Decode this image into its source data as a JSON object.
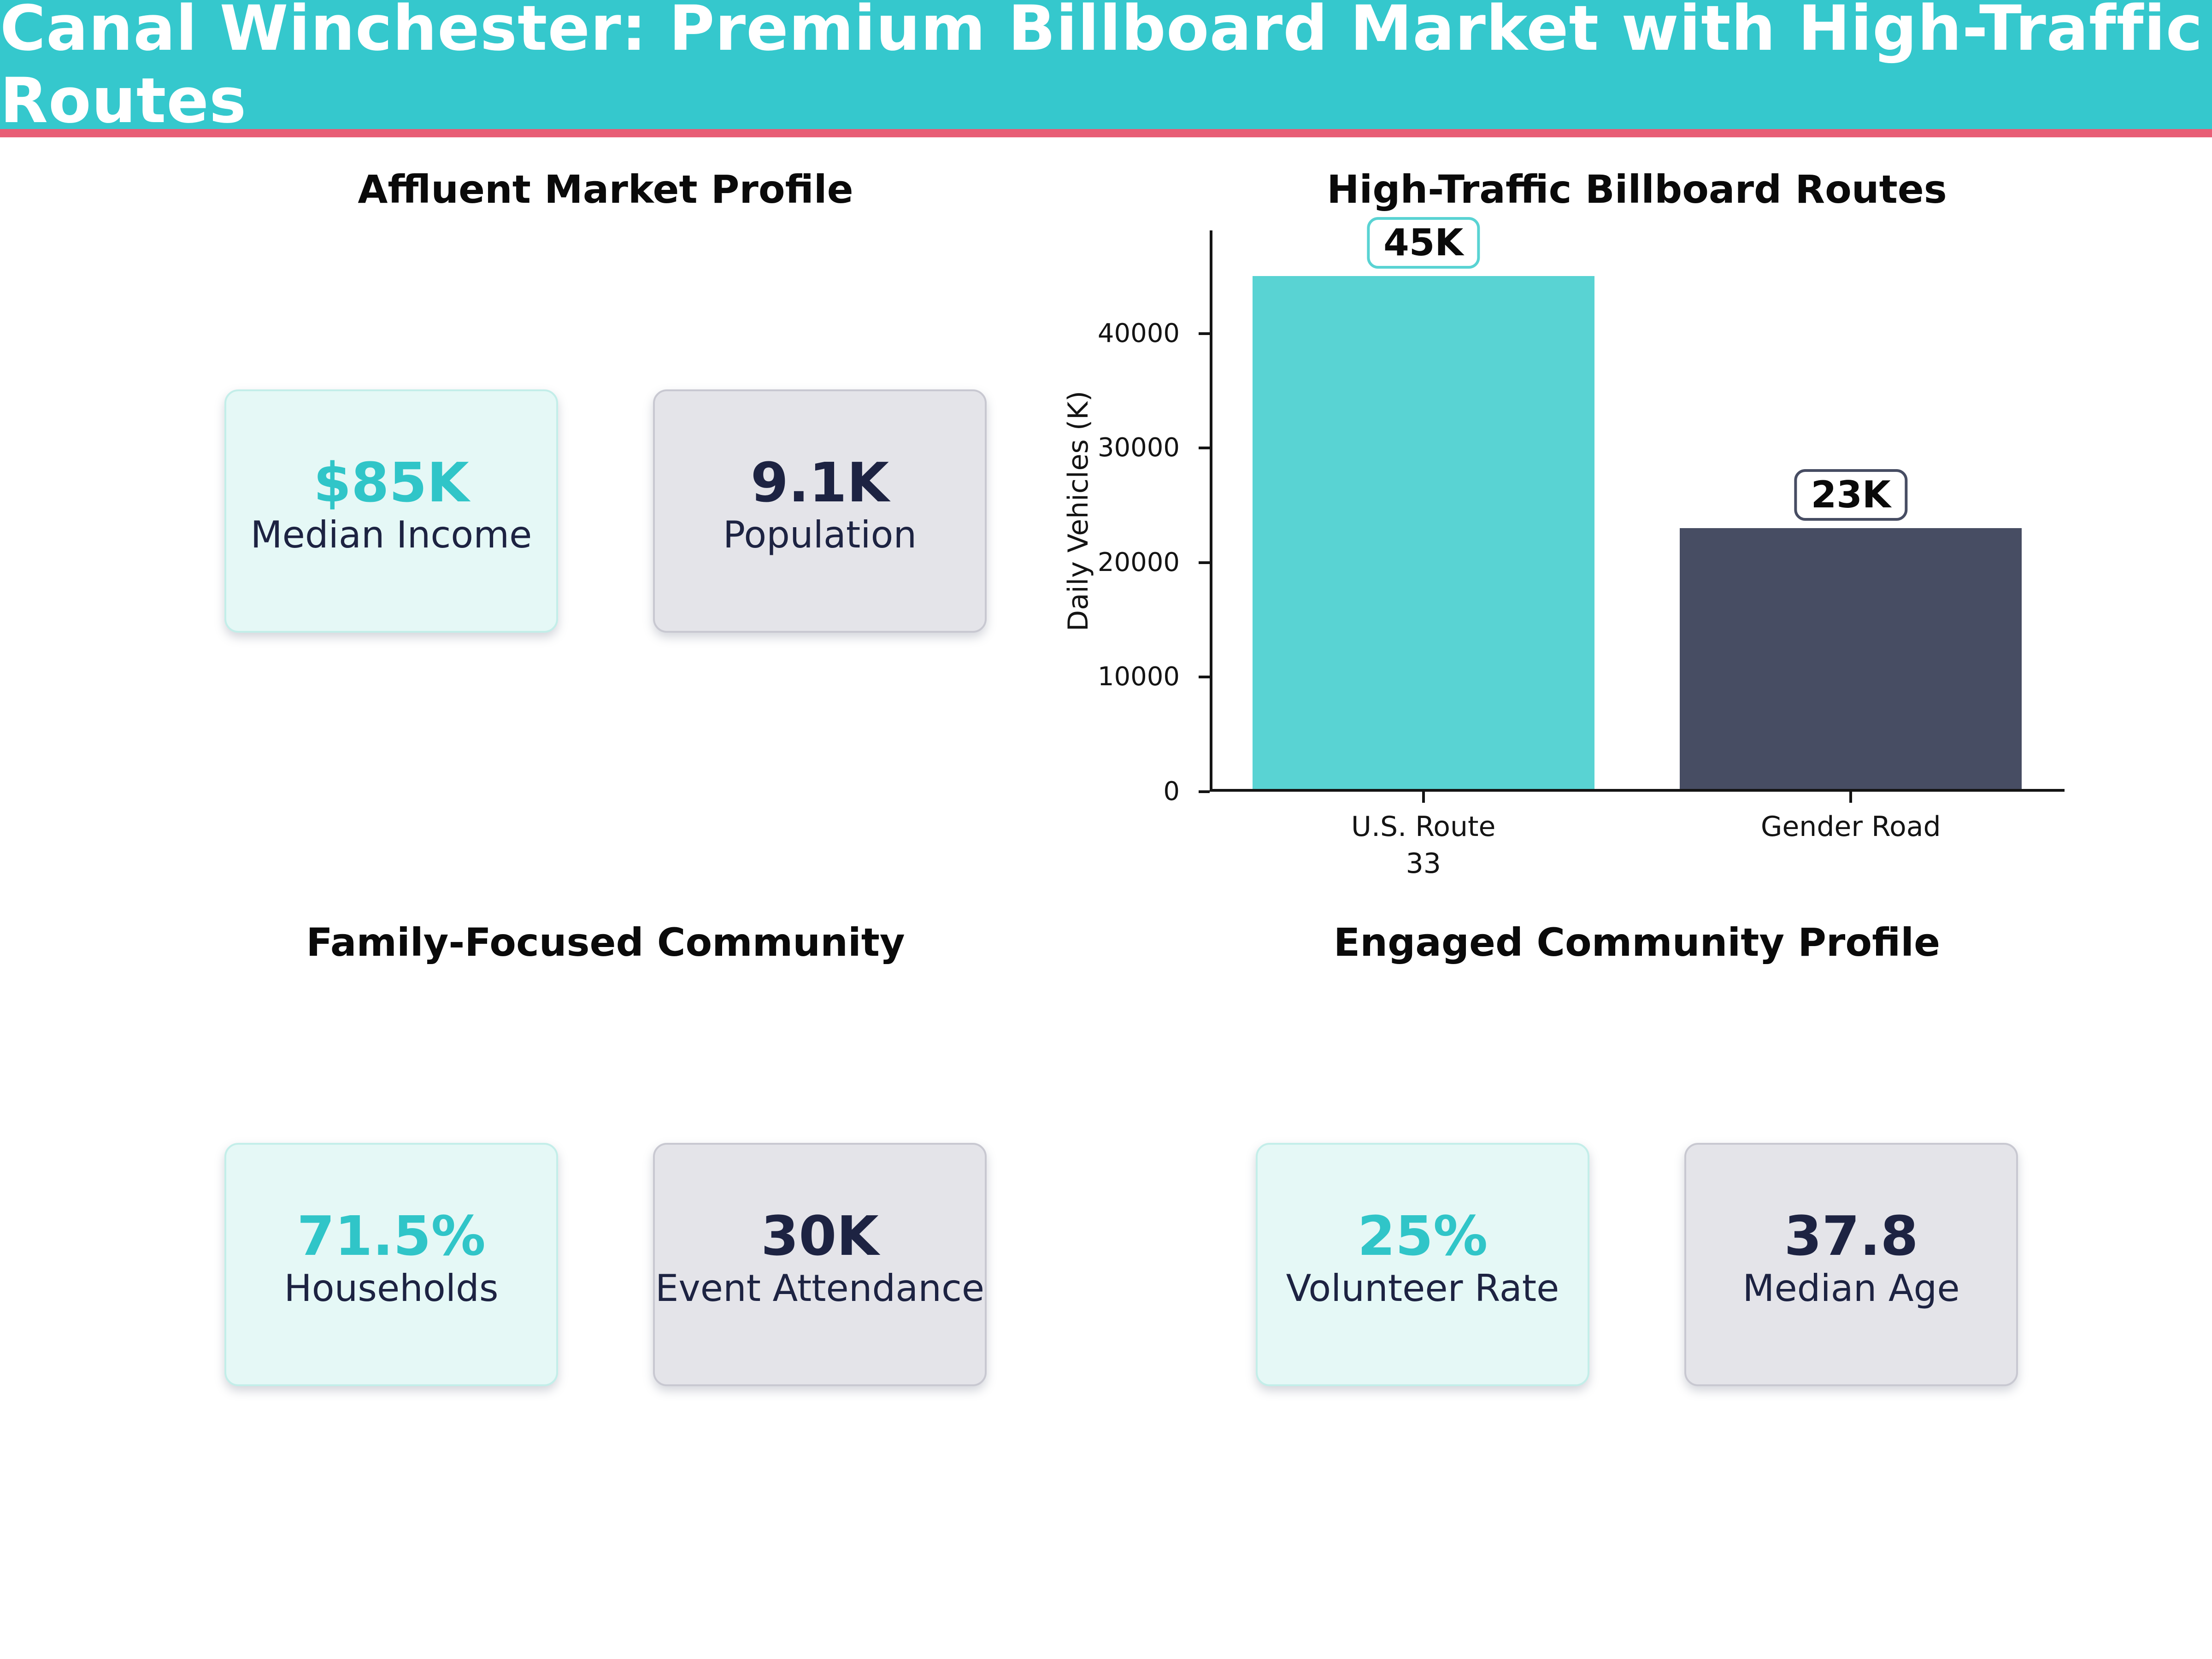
{
  "header": {
    "title": "Canal Winchester: Premium Billboard Market with High-Traffic Routes",
    "background_color": "#35C8CD",
    "text_color": "#FFFFFF",
    "accent_line_color": "#E85D75"
  },
  "quadrants": {
    "affluent": {
      "title": "Affluent Market Profile",
      "cards": [
        {
          "value": "$85K",
          "label": "Median Income",
          "variant": "teal"
        },
        {
          "value": "9.1K",
          "label": "Population",
          "variant": "gray"
        }
      ]
    },
    "traffic": {
      "title": "High-Traffic Billboard Routes"
    },
    "family": {
      "title": "Family-Focused Community",
      "cards": [
        {
          "value": "71.5%",
          "label": "Households",
          "variant": "teal"
        },
        {
          "value": "30K",
          "label": "Event Attendance",
          "variant": "gray"
        }
      ]
    },
    "engaged": {
      "title": "Engaged Community Profile",
      "cards": [
        {
          "value": "25%",
          "label": "Volunteer Rate",
          "variant": "teal"
        },
        {
          "value": "37.8",
          "label": "Median Age",
          "variant": "gray"
        }
      ]
    }
  },
  "chart_data": {
    "type": "bar",
    "title": "High-Traffic Billboard Routes",
    "categories": [
      "U.S. Route\n33",
      "Gender Road"
    ],
    "values": [
      45000,
      23000
    ],
    "bar_labels": [
      "45K",
      "23K"
    ],
    "bar_colors": [
      "#59D3D3",
      "#474D63"
    ],
    "xlabel": "",
    "ylabel": "Daily Vehicles (K)",
    "yticks": [
      0,
      10000,
      20000,
      30000,
      40000
    ],
    "ylim": [
      0,
      49000
    ],
    "grid": false,
    "legend": false,
    "annotation_style": "white rounded box, border colored to match bar"
  },
  "colors": {
    "teal_value_text": "#30C5C8",
    "navy_text": "#1D2342",
    "card_teal_bg": "#E5F8F6",
    "card_teal_border": "#C3EEE9",
    "card_gray_bg": "#E4E4E9",
    "card_gray_border": "#C8C8D1",
    "axis_color": "#141414"
  }
}
